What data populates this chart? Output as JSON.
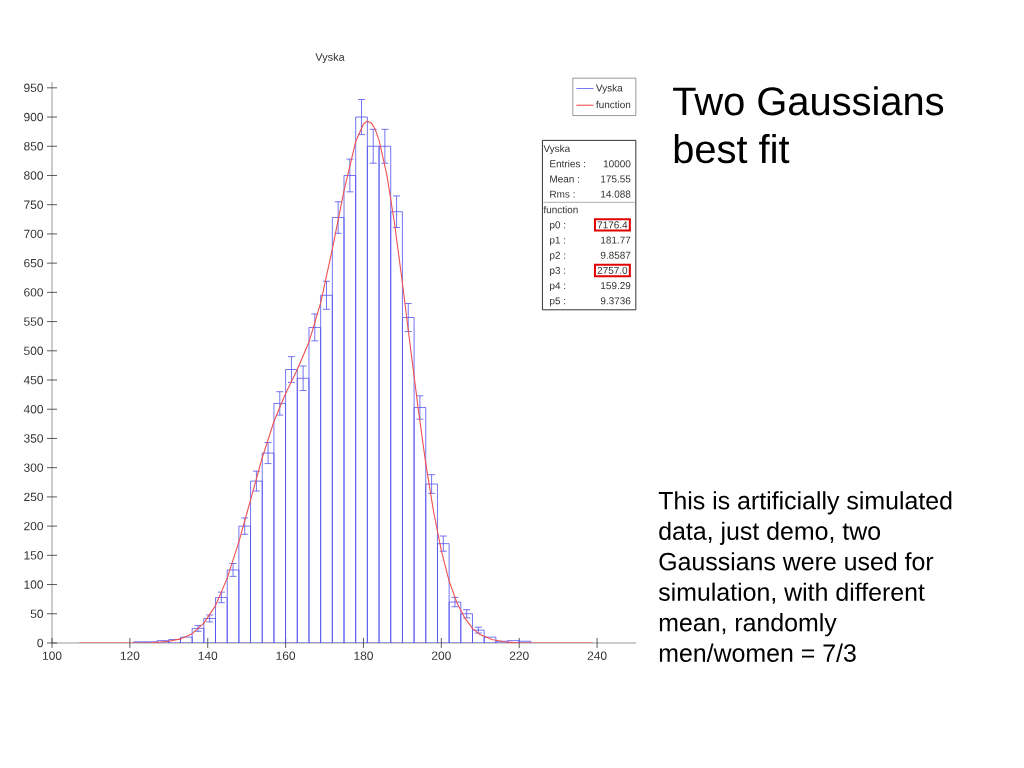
{
  "chart_data": {
    "type": "histogram",
    "title": "Vyska",
    "bins": [
      121,
      124,
      127,
      130,
      133,
      136,
      139,
      142,
      145,
      148,
      151,
      154,
      157,
      160,
      163,
      166,
      169,
      172,
      175,
      178,
      181,
      184,
      187,
      190,
      193,
      196,
      199,
      202,
      205,
      208,
      211,
      214,
      217,
      220,
      223
    ],
    "series": [
      {
        "name": "Vyska",
        "color": "#5050f0",
        "values": [
          2,
          2,
          4,
          6,
          10,
          25,
          42,
          78,
          125,
          200,
          277,
          325,
          410,
          468,
          453,
          540,
          595,
          728,
          800,
          900,
          850,
          850,
          738,
          557,
          403,
          272,
          170,
          70,
          50,
          22,
          10,
          3,
          4,
          3
        ],
        "errors": [
          null,
          null,
          null,
          null,
          null,
          5,
          6,
          9,
          11,
          14,
          17,
          18,
          20,
          22,
          21,
          23,
          24,
          27,
          28,
          30,
          29,
          29,
          27,
          24,
          20,
          16,
          13,
          8,
          7,
          5,
          null,
          null,
          null,
          null
        ]
      },
      {
        "name": "function",
        "type": "line",
        "color": "#f05050",
        "x": [
          107,
          115,
          120,
          125,
          130,
          133,
          136,
          139,
          142,
          145,
          148,
          151,
          154,
          157,
          160,
          163,
          166,
          169,
          172,
          175,
          178,
          180,
          181,
          182,
          183,
          184,
          186,
          188,
          190,
          192,
          194,
          196,
          198,
          200,
          202,
          204,
          206,
          208,
          210,
          213,
          216,
          220,
          230,
          239
        ],
        "values": [
          0,
          0,
          0,
          0,
          3,
          7,
          16,
          34,
          64,
          111,
          173,
          245,
          317,
          379,
          427,
          468,
          515,
          582,
          674,
          774,
          858,
          888,
          893,
          890,
          879,
          860,
          801,
          717,
          616,
          509,
          404,
          307,
          225,
          158,
          106,
          69,
          43,
          25,
          14,
          6,
          2,
          0,
          0,
          0
        ]
      }
    ],
    "xlim": [
      100,
      250
    ],
    "ylim": [
      0,
      960
    ],
    "xticks": [
      100,
      120,
      140,
      160,
      180,
      200,
      220,
      240
    ],
    "yticks": [
      0,
      50,
      100,
      150,
      200,
      250,
      300,
      350,
      400,
      450,
      500,
      550,
      600,
      650,
      700,
      750,
      800,
      850,
      900,
      950
    ],
    "legend": "top right",
    "annotations": [
      "Two Gaussians best fit",
      "This is artificially simulated data, just demo, two Gaussians were used for simulation, with different mean, randomly men/women = 7/3",
      "Vyska",
      "Entries :",
      "10000",
      "Mean :",
      "175.55",
      "Rms :",
      "14.088",
      "function",
      "p0 :",
      "7176.4",
      "p1 :",
      "181.77",
      "p2 :",
      "9.8587",
      "p3 :",
      "2757.0",
      "p4 :",
      "159.29",
      "p5 :",
      "9.3736"
    ]
  }
}
